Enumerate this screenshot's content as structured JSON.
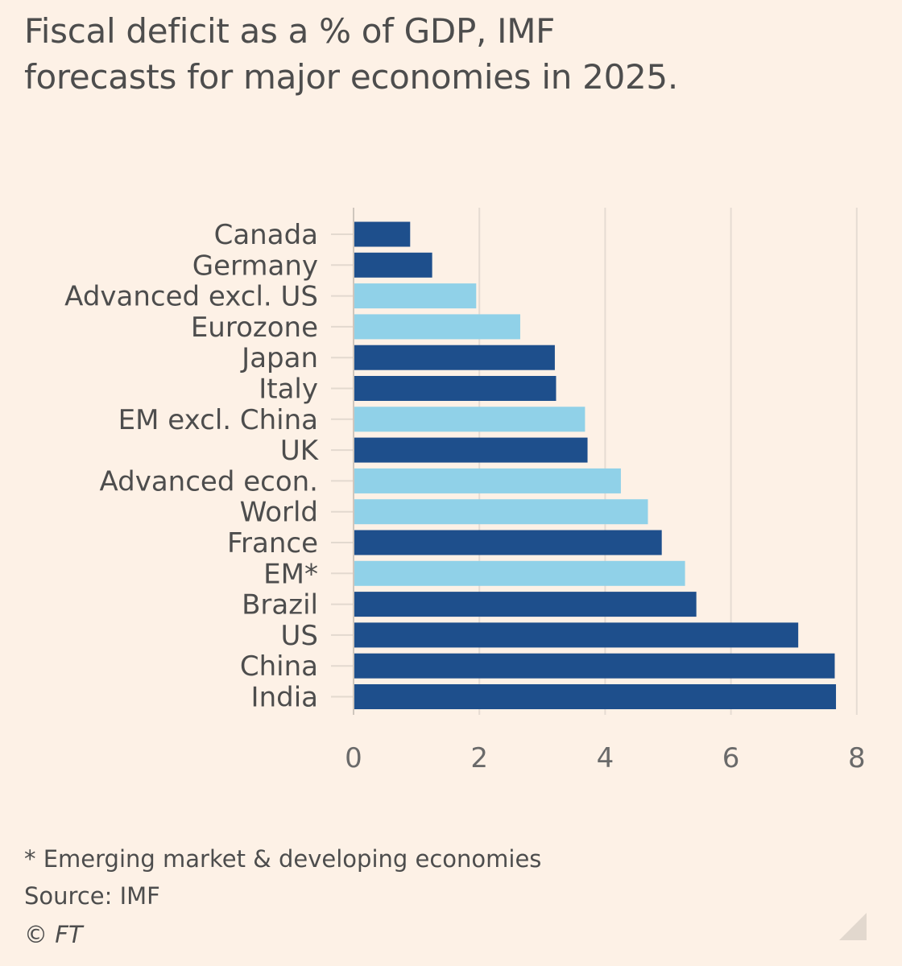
{
  "title_line1": "Fiscal deficit as a % of GDP, IMF",
  "title_line2": "forecasts for major economies in 2025.",
  "chart_data": {
    "type": "bar",
    "orientation": "horizontal",
    "title": "Fiscal deficit as a % of GDP, IMF forecasts for major economies in 2025.",
    "categories": [
      "Canada",
      "Germany",
      "Advanced excl. US",
      "Eurozone",
      "Japan",
      "Italy",
      "EM excl. China",
      "UK",
      "Advanced econ.",
      "World",
      "France",
      "EM*",
      "Brazil",
      "US",
      "China",
      "India"
    ],
    "values": [
      0.9,
      1.25,
      1.95,
      2.65,
      3.2,
      3.22,
      3.68,
      3.72,
      4.25,
      4.68,
      4.9,
      5.27,
      5.45,
      7.07,
      7.65,
      7.67
    ],
    "groups": [
      "country",
      "country",
      "aggregate",
      "aggregate",
      "country",
      "country",
      "aggregate",
      "country",
      "aggregate",
      "aggregate",
      "country",
      "aggregate",
      "country",
      "country",
      "country",
      "country"
    ],
    "colors": {
      "country": "#1e4f8c",
      "aggregate": "#90d1e8"
    },
    "xlim": [
      0,
      8
    ],
    "xticks": [
      0,
      2,
      4,
      6,
      8
    ],
    "grid": true,
    "xlabel": "",
    "ylabel": ""
  },
  "footnote": "* Emerging market & developing economies",
  "source": "Source: IMF",
  "copyright": "© FT",
  "icons": {
    "resize": "resize-corner-icon"
  }
}
